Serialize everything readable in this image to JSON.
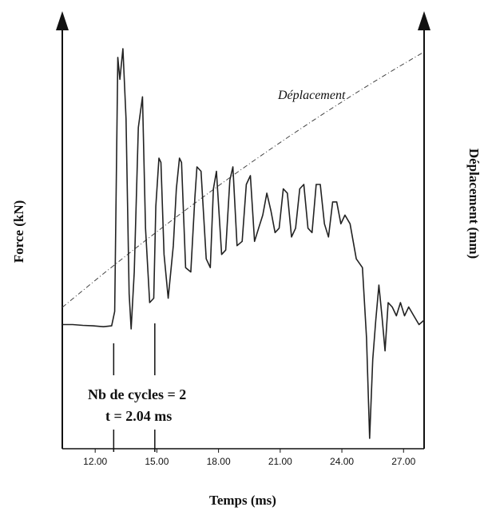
{
  "chart_data": {
    "type": "line",
    "xlabel": "Temps (ms)",
    "ylabel_left": "Force (kN)",
    "ylabel_right": "Déplacement (mm)",
    "xlim": [
      10.4,
      28.0
    ],
    "x_ticks": [
      12.0,
      15.0,
      18.0,
      21.0,
      24.0,
      27.0
    ],
    "x_tick_labels": [
      "12.00",
      "15.00",
      "18.00",
      "21.00",
      "24.00",
      "27.00"
    ],
    "series": [
      {
        "name": "Force",
        "x": [
          10.4,
          10.9,
          11.4,
          11.9,
          12.4,
          12.8,
          12.95,
          13.1,
          13.2,
          13.35,
          13.5,
          13.65,
          13.75,
          13.9,
          14.1,
          14.3,
          14.45,
          14.65,
          14.85,
          14.95,
          15.1,
          15.2,
          15.35,
          15.55,
          15.8,
          15.95,
          16.1,
          16.2,
          16.4,
          16.65,
          16.85,
          16.95,
          17.15,
          17.4,
          17.6,
          17.75,
          17.9,
          18.15,
          18.35,
          18.55,
          18.7,
          18.9,
          19.15,
          19.35,
          19.55,
          19.75,
          19.95,
          20.15,
          20.35,
          20.55,
          20.75,
          20.95,
          21.15,
          21.35,
          21.55,
          21.75,
          21.95,
          22.15,
          22.35,
          22.55,
          22.75,
          22.95,
          23.15,
          23.35,
          23.55,
          23.75,
          23.95,
          24.15,
          24.4,
          24.7,
          25.0,
          25.2,
          25.35,
          25.5,
          25.65,
          25.8,
          25.95,
          26.1,
          26.25,
          26.45,
          26.65,
          26.85,
          27.05,
          27.25,
          27.5,
          27.75,
          28.0
        ],
        "y": [
          -0.7,
          -0.7,
          -0.72,
          -0.73,
          -0.75,
          -0.73,
          -0.4,
          5.4,
          4.9,
          5.6,
          4.0,
          0.0,
          -0.8,
          0.5,
          3.8,
          4.5,
          1.5,
          -0.2,
          -0.1,
          2.0,
          3.1,
          3.0,
          0.9,
          -0.1,
          1.1,
          2.4,
          3.1,
          3.0,
          0.6,
          0.5,
          2.2,
          2.9,
          2.8,
          0.8,
          0.6,
          2.4,
          2.8,
          0.9,
          1.0,
          2.6,
          2.9,
          1.1,
          1.2,
          2.5,
          2.7,
          1.2,
          1.5,
          1.8,
          2.3,
          1.9,
          1.4,
          1.5,
          2.4,
          2.3,
          1.3,
          1.5,
          2.4,
          2.5,
          1.5,
          1.4,
          2.5,
          2.5,
          1.6,
          1.3,
          2.1,
          2.1,
          1.6,
          1.8,
          1.6,
          0.8,
          0.6,
          -1.0,
          -3.3,
          -1.5,
          -0.6,
          0.2,
          -0.5,
          -1.3,
          -0.2,
          -0.3,
          -0.5,
          -0.2,
          -0.5,
          -0.3,
          -0.5,
          -0.7,
          -0.6
        ],
        "color": "#222222"
      },
      {
        "name": "Déplacement",
        "x": [
          10.4,
          28.0
        ],
        "y": [
          0.0,
          1.0
        ],
        "color": "#444444",
        "style": "dash-dot"
      }
    ],
    "annotations": {
      "cycles": "Nb de cycles = 2",
      "time": "t = 2.04 ms"
    },
    "markers_x": [
      12.9,
      14.9
    ],
    "grid": false,
    "axis_arrows": true
  }
}
